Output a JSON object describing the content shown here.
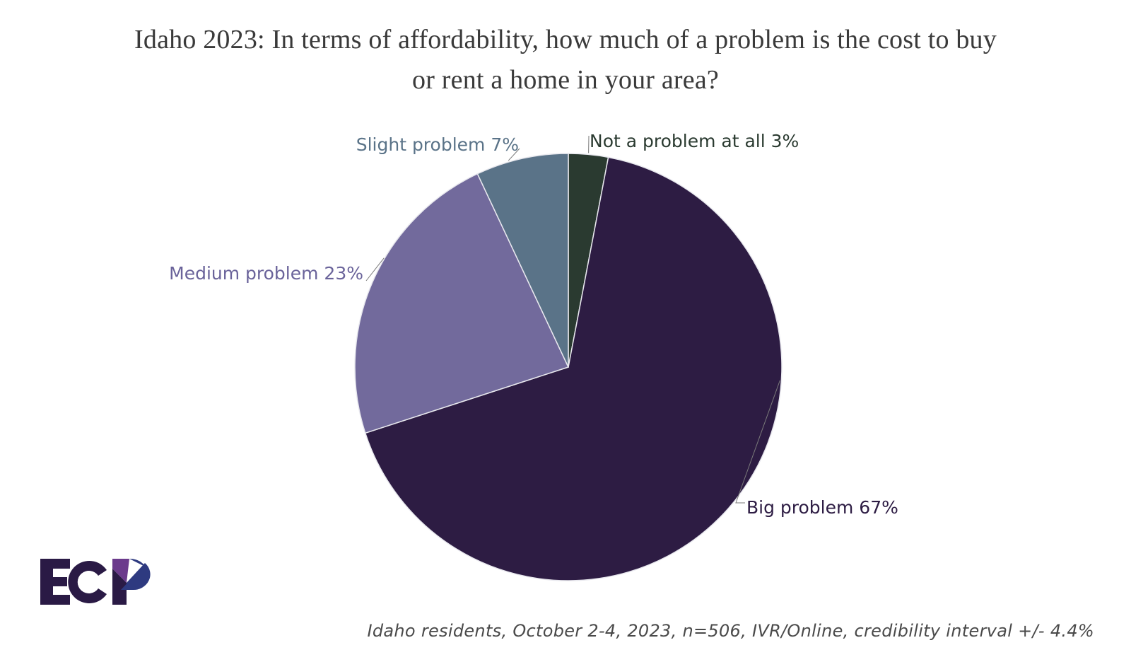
{
  "header": {
    "title_line1": "Idaho 2023: In terms of affordability, how much of a problem is the cost to buy",
    "title_line2": "or rent a home in your area?"
  },
  "chart_data": {
    "type": "pie",
    "title": "Idaho 2023: In terms of affordability, how much of a problem is the cost to buy or rent a home in your area?",
    "start_angle": "12 o'clock",
    "direction": "clockwise",
    "slices": [
      {
        "label": "Not a problem at all",
        "value": 3,
        "display": "Not a problem at all 3%",
        "color": "#2a3a30",
        "label_color": "#2a3a30"
      },
      {
        "label": "Big problem",
        "value": 67,
        "display": "Big problem 67%",
        "color": "#2d1c43",
        "label_color": "#2d1c43"
      },
      {
        "label": "Medium problem",
        "value": 23,
        "display": "Medium problem 23%",
        "color": "#726a9c",
        "label_color": "#6a639a"
      },
      {
        "label": "Slight problem",
        "value": 7,
        "display": "Slight problem 7%",
        "color": "#5a7388",
        "label_color": "#5a7388"
      }
    ],
    "units": "%"
  },
  "footer": {
    "note": "Idaho residents, October 2-4, 2023, n=506, IVR/Online, credibility interval +/- 4.4%"
  },
  "logo": {
    "text": "ECP",
    "colors": {
      "dark": "#2a1a45",
      "purple": "#6b3a8c",
      "blue": "#2e3a80"
    }
  }
}
